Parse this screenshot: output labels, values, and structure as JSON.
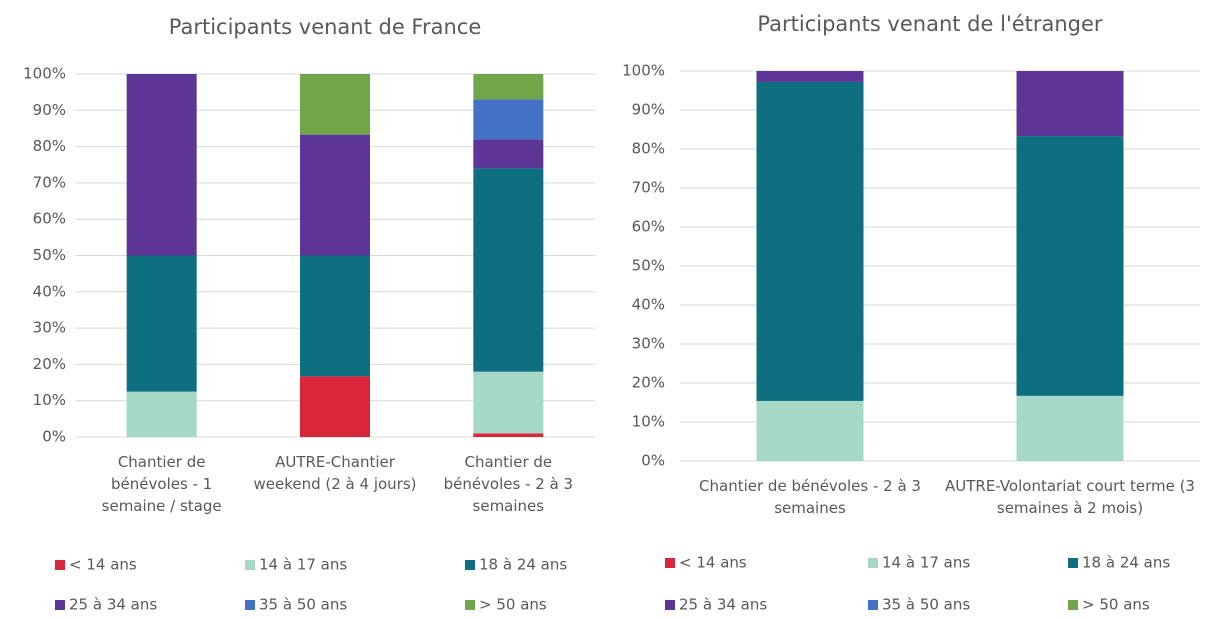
{
  "chart_data": [
    {
      "type": "stacked_bar",
      "title": "Participants venant de France",
      "categories": [
        "Chantier de bénévoles - 1 semaine / stage",
        "AUTRE-Chantier weekend (2 à 4 jours)",
        "Chantier de bénévoles - 2 à 3 semaines"
      ],
      "series": [
        {
          "name": "< 14 ans",
          "color": "#d9263b",
          "values": [
            0,
            16.7,
            1
          ]
        },
        {
          "name": "14 à 17 ans",
          "color": "#a6d8c8",
          "values": [
            12.5,
            0,
            17
          ]
        },
        {
          "name": "18 à 24 ans",
          "color": "#0e6f80",
          "values": [
            37.5,
            33.3,
            56
          ]
        },
        {
          "name": "25 à 34 ans",
          "color": "#5c3596",
          "values": [
            50,
            33.3,
            8
          ]
        },
        {
          "name": "35 à 50 ans",
          "color": "#4472c4",
          "values": [
            0,
            0,
            11
          ]
        },
        {
          "name": "> 50 ans",
          "color": "#70a54a",
          "values": [
            0,
            16.7,
            7
          ]
        }
      ],
      "ylim": [
        0,
        100
      ],
      "yticks": [
        {
          "value": 0,
          "label": "0%"
        },
        {
          "value": 10,
          "label": "10%"
        },
        {
          "value": 20,
          "label": "20%"
        },
        {
          "value": 30,
          "label": "30%"
        },
        {
          "value": 40,
          "label": "40%"
        },
        {
          "value": 50,
          "label": "50%"
        },
        {
          "value": 60,
          "label": "60%"
        },
        {
          "value": 70,
          "label": "70%"
        },
        {
          "value": 80,
          "label": "80%"
        },
        {
          "value": 90,
          "label": "90%"
        },
        {
          "value": 100,
          "label": "100%"
        }
      ],
      "grid": true,
      "legend": "bottom"
    },
    {
      "type": "stacked_bar",
      "title": "Participants venant de l'étranger",
      "categories": [
        "Chantier de bénévoles - 2 à 3 semaines",
        "AUTRE-Volontariat court terme (3 semaines à 2 mois)"
      ],
      "series": [
        {
          "name": "< 14 ans",
          "color": "#d9263b",
          "values": [
            0,
            0
          ]
        },
        {
          "name": "14 à 17 ans",
          "color": "#a6d8c8",
          "values": [
            15.4,
            16.7
          ]
        },
        {
          "name": "18 à 24 ans",
          "color": "#0e6f80",
          "values": [
            81.8,
            66.6
          ]
        },
        {
          "name": "25 à 34 ans",
          "color": "#5c3596",
          "values": [
            2.8,
            16.7
          ]
        },
        {
          "name": "35 à 50 ans",
          "color": "#4472c4",
          "values": [
            0,
            0
          ]
        },
        {
          "name": "> 50 ans",
          "color": "#70a54a",
          "values": [
            0,
            0
          ]
        }
      ],
      "ylim": [
        0,
        100
      ],
      "yticks": [
        {
          "value": 0,
          "label": "0%"
        },
        {
          "value": 10,
          "label": "10%"
        },
        {
          "value": 20,
          "label": "20%"
        },
        {
          "value": 30,
          "label": "30%"
        },
        {
          "value": 40,
          "label": "40%"
        },
        {
          "value": 50,
          "label": "50%"
        },
        {
          "value": 60,
          "label": "60%"
        },
        {
          "value": 70,
          "label": "70%"
        },
        {
          "value": 80,
          "label": "80%"
        },
        {
          "value": 90,
          "label": "90%"
        },
        {
          "value": 100,
          "label": "100%"
        }
      ],
      "grid": true,
      "legend": "bottom"
    }
  ]
}
